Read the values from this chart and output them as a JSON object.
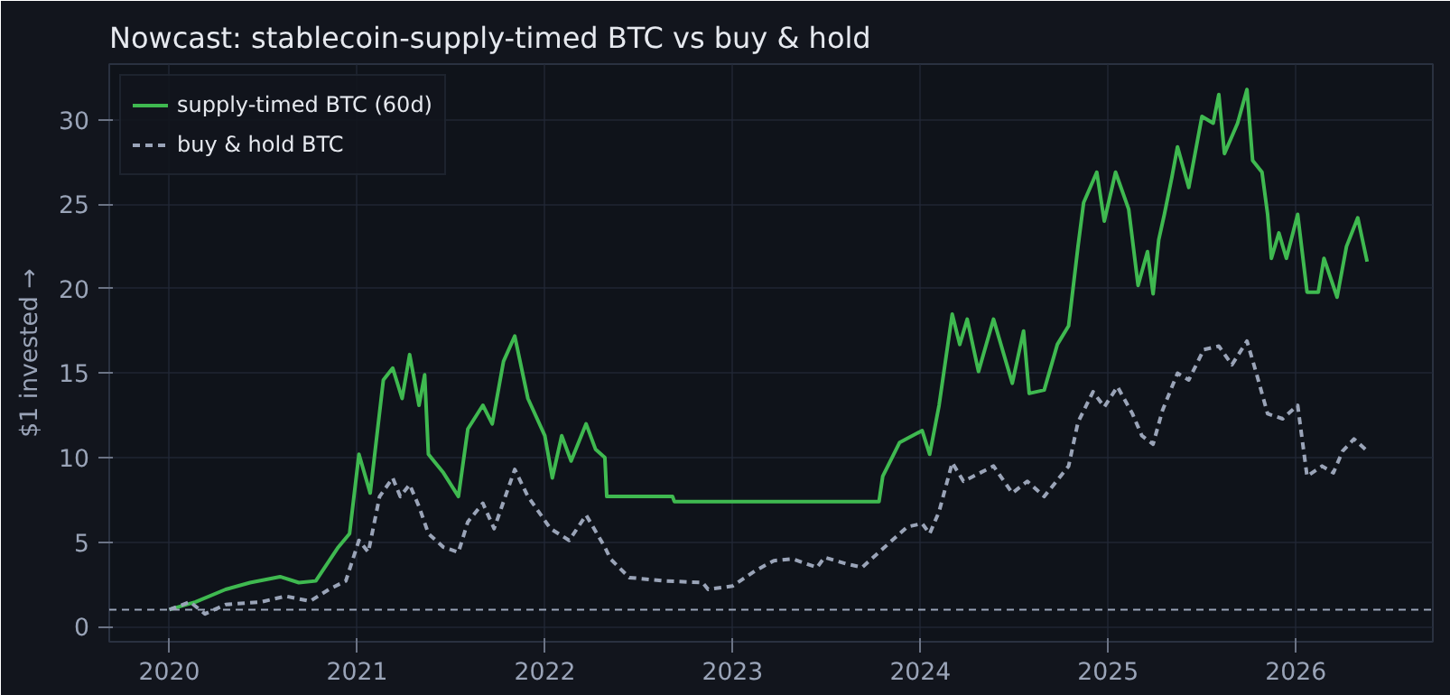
{
  "chart_data": {
    "type": "line",
    "title": "Nowcast: stablecoin-supply-timed BTC vs buy & hold",
    "ylabel": "$1 invested →",
    "xlim": [
      2019.68,
      2026.73
    ],
    "xticks": [
      2020,
      2021,
      2022,
      2023,
      2024,
      2025,
      2026
    ],
    "ylim": [
      -0.9,
      33.3
    ],
    "yticks": [
      0,
      5,
      10,
      15,
      20,
      25,
      30
    ],
    "grid": true,
    "legend": "top left",
    "series": [
      {
        "name": "supply-timed BTC (60d)",
        "color": "#3fb950",
        "line_style": "solid",
        "x": [
          2020.0,
          2020.14,
          2020.3,
          2020.43,
          2020.59,
          2020.69,
          2020.78,
          2020.9,
          2020.96,
          2021.01,
          2021.07,
          2021.14,
          2021.19,
          2021.24,
          2021.28,
          2021.33,
          2021.36,
          2021.38,
          2021.46,
          2021.54,
          2021.59,
          2021.67,
          2021.72,
          2021.78,
          2021.84,
          2021.91,
          2022.0,
          2022.04,
          2022.09,
          2022.14,
          2022.22,
          2022.27,
          2022.32,
          2022.33,
          2022.68,
          2022.69,
          2023.78,
          2023.8,
          2023.89,
          2024.01,
          2024.05,
          2024.1,
          2024.17,
          2024.21,
          2024.25,
          2024.31,
          2024.39,
          2024.49,
          2024.55,
          2024.58,
          2024.66,
          2024.73,
          2024.79,
          2024.84,
          2024.87,
          2024.94,
          2024.98,
          2025.04,
          2025.11,
          2025.16,
          2025.21,
          2025.24,
          2025.27,
          2025.3,
          2025.34,
          2025.37,
          2025.43,
          2025.5,
          2025.56,
          2025.59,
          2025.62,
          2025.69,
          2025.74,
          2025.77,
          2025.82,
          2025.85,
          2025.87,
          2025.91,
          2025.95,
          2026.01,
          2026.06,
          2026.12,
          2026.15,
          2026.22,
          2026.27,
          2026.33,
          2026.38
        ],
        "values": [
          1.0,
          1.46,
          2.2,
          2.6,
          2.95,
          2.6,
          2.7,
          4.7,
          5.5,
          10.2,
          7.9,
          14.6,
          15.3,
          13.5,
          16.1,
          13.1,
          14.9,
          10.2,
          9.1,
          7.7,
          11.7,
          13.1,
          12.0,
          15.7,
          17.2,
          13.5,
          11.3,
          8.8,
          11.3,
          9.8,
          12.0,
          10.5,
          10.0,
          7.7,
          7.7,
          7.4,
          7.4,
          8.9,
          10.9,
          11.6,
          10.2,
          13.1,
          18.5,
          16.7,
          18.2,
          15.1,
          18.2,
          14.4,
          17.5,
          13.8,
          14.0,
          16.7,
          17.8,
          22.5,
          25.1,
          26.9,
          24.0,
          26.9,
          24.7,
          20.2,
          22.2,
          19.7,
          22.9,
          24.4,
          26.6,
          28.4,
          26.0,
          30.2,
          29.8,
          31.5,
          28.0,
          29.8,
          31.8,
          27.6,
          26.9,
          24.4,
          21.8,
          23.3,
          21.8,
          24.4,
          19.8,
          19.8,
          21.8,
          19.5,
          22.5,
          24.2,
          21.6
        ]
      },
      {
        "name": "buy & hold BTC",
        "color": "#9aa4b8",
        "line_style": "dashed",
        "x": [
          2020.0,
          2020.11,
          2020.19,
          2020.3,
          2020.49,
          2020.62,
          2020.75,
          2020.85,
          2020.94,
          2021.01,
          2021.06,
          2021.12,
          2021.19,
          2021.23,
          2021.28,
          2021.33,
          2021.38,
          2021.46,
          2021.54,
          2021.59,
          2021.67,
          2021.73,
          2021.84,
          2021.91,
          2022.03,
          2022.13,
          2022.22,
          2022.32,
          2022.35,
          2022.45,
          2022.64,
          2022.84,
          2022.87,
          2023.0,
          2023.12,
          2023.22,
          2023.32,
          2023.45,
          2023.49,
          2023.61,
          2023.69,
          2023.8,
          2023.93,
          2024.01,
          2024.05,
          2024.1,
          2024.17,
          2024.23,
          2024.39,
          2024.49,
          2024.57,
          2024.66,
          2024.79,
          2024.84,
          2024.92,
          2024.98,
          2025.05,
          2025.13,
          2025.18,
          2025.24,
          2025.29,
          2025.37,
          2025.43,
          2025.51,
          2025.59,
          2025.66,
          2025.74,
          2025.79,
          2025.85,
          2025.93,
          2026.01,
          2026.06,
          2026.14,
          2026.2,
          2026.25,
          2026.31,
          2026.38
        ],
        "values": [
          1.0,
          1.46,
          0.75,
          1.3,
          1.46,
          1.8,
          1.5,
          2.2,
          2.7,
          5.1,
          4.4,
          7.7,
          8.8,
          7.7,
          8.4,
          7.1,
          5.5,
          4.7,
          4.4,
          6.2,
          7.3,
          5.8,
          9.3,
          7.7,
          5.8,
          5.1,
          6.6,
          4.7,
          4.0,
          2.9,
          2.7,
          2.6,
          2.2,
          2.4,
          3.3,
          3.9,
          4.0,
          3.5,
          4.1,
          3.7,
          3.5,
          4.6,
          5.9,
          6.1,
          5.5,
          6.8,
          9.7,
          8.6,
          9.5,
          7.9,
          8.6,
          7.7,
          9.5,
          12.1,
          13.9,
          13.0,
          14.2,
          12.6,
          11.3,
          10.8,
          12.8,
          15.0,
          14.6,
          16.4,
          16.6,
          15.5,
          16.9,
          15.0,
          12.6,
          12.3,
          13.1,
          8.9,
          9.5,
          9.1,
          10.4,
          11.1,
          10.4
        ]
      }
    ],
    "ref_lines": [
      {
        "axis": "y",
        "value": 1,
        "color": "#9aa4b8",
        "line_style": "dashed"
      }
    ]
  }
}
